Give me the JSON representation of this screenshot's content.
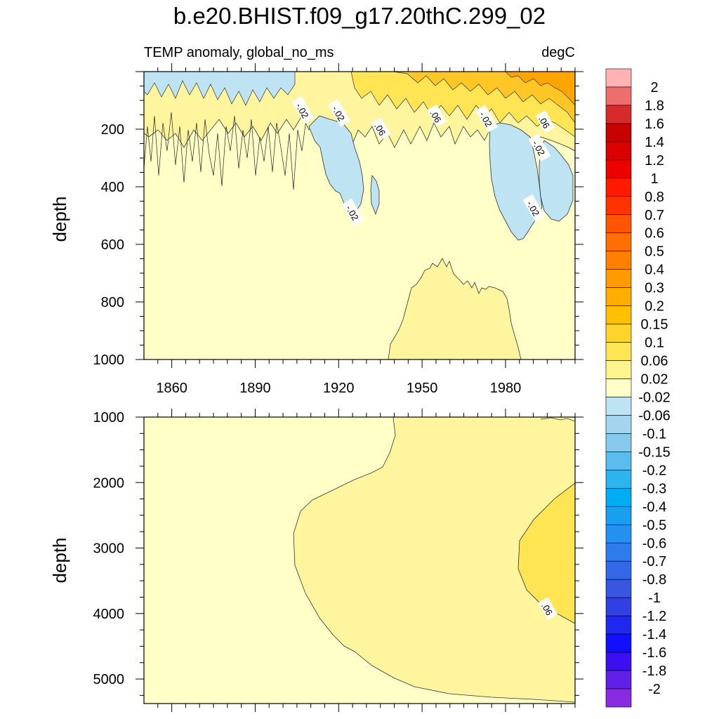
{
  "title": "b.e20.BHIST.f09_g17.20thC.299_02",
  "chart_data": [
    {
      "type": "contour",
      "panel": "upper",
      "subtitle_left": "TEMP anomaly, global_no_ms",
      "subtitle_right": "degC",
      "ylabel": "depth",
      "xlabel": "",
      "xlim": [
        1850,
        2005
      ],
      "ylim": [
        0,
        1000
      ],
      "y_reversed": true,
      "xticks": [
        1860,
        1890,
        1920,
        1950,
        1980
      ],
      "xtick_labels": [
        "1860",
        "1890",
        "1920",
        "1950",
        "1980"
      ],
      "yticks": [
        200,
        400,
        600,
        800,
        1000
      ],
      "ytick_labels": [
        "200",
        "400",
        "600",
        "800",
        "1000"
      ],
      "contour_labels": [
        {
          "text": "-.02",
          "year": 1907,
          "depth": 135
        },
        {
          "text": "-.02",
          "year": 1920,
          "depth": 145
        },
        {
          "text": ".06",
          "year": 1935,
          "depth": 200
        },
        {
          "text": ".06",
          "year": 1955,
          "depth": 155
        },
        {
          "text": "-.02",
          "year": 1973,
          "depth": 165
        },
        {
          "text": ".06",
          "year": 1994,
          "depth": 175
        },
        {
          "text": "-.02",
          "year": 1992,
          "depth": 265
        },
        {
          "text": "-.02",
          "year": 1990,
          "depth": 475
        },
        {
          "text": "-.02",
          "year": 1925,
          "depth": 490
        }
      ]
    },
    {
      "type": "contour",
      "panel": "lower",
      "ylabel": "depth",
      "xlim": [
        1850,
        2005
      ],
      "ylim": [
        1000,
        5375
      ],
      "y_reversed": true,
      "yticks": [
        1000,
        2000,
        3000,
        4000,
        5000
      ],
      "ytick_labels": [
        "1000",
        "2000",
        "3000",
        "4000",
        "5000"
      ],
      "contour_labels": [
        {
          "text": ".06",
          "year": 1995,
          "depth": 3930
        }
      ]
    }
  ],
  "colorbar": {
    "labels": [
      "2",
      "1.8",
      "1.6",
      "1.4",
      "1.2",
      "1",
      "0.8",
      "0.7",
      "0.6",
      "0.5",
      "0.4",
      "0.3",
      "0.2",
      "0.15",
      "0.1",
      "0.06",
      "0.02",
      "-0.02",
      "-0.06",
      "-0.1",
      "-0.15",
      "-0.2",
      "-0.3",
      "-0.4",
      "-0.5",
      "-0.6",
      "-0.7",
      "-0.8",
      "-1",
      "-1.2",
      "-1.4",
      "-1.6",
      "-1.8",
      "-2"
    ],
    "colors": [
      "#FFB3B3",
      "#EE6E6E",
      "#D82A2A",
      "#C80000",
      "#DA0000",
      "#EC0000",
      "#FF1A00",
      "#FF3300",
      "#FF5500",
      "#FF6E00",
      "#FF8000",
      "#FF9A00",
      "#FFAD00",
      "#FFC000",
      "#FFD42A",
      "#FFE554",
      "#FFF38E",
      "#FFFFC8",
      "#BEE3F2",
      "#A3D5EF",
      "#87C8ED",
      "#5ABDED",
      "#2DB4EF",
      "#00ADF2",
      "#18A0F0",
      "#2490F0",
      "#2E7CEE",
      "#3468E8",
      "#3856E0",
      "#3040E2",
      "#2028F0",
      "#1010FF",
      "#3A10F0",
      "#6020E8",
      "#8A2BE2"
    ]
  },
  "fill_colors": {
    "background": "#FFFFC8",
    "pos_low": "#FFF59E",
    "pos_mid": "#FFE554",
    "pos_high": "#FFC626",
    "pos_max": "#FFA500",
    "neg_low": "#BEE3F2",
    "neg_mid": "#8CC8EC"
  }
}
